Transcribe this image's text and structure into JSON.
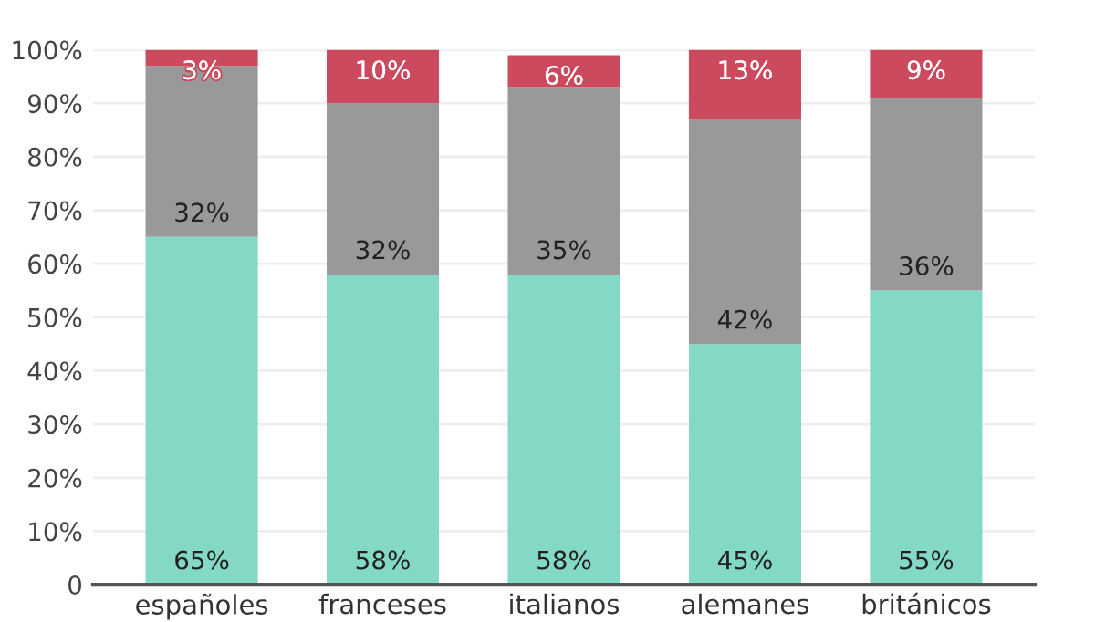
{
  "chart_data": {
    "type": "bar",
    "stacked": true,
    "categories": [
      "españoles",
      "franceses",
      "italianos",
      "alemanes",
      "británicos"
    ],
    "series": [
      {
        "color": "#84d9c6",
        "values": [
          65,
          58,
          58,
          45,
          55
        ],
        "value_labels": [
          "65%",
          "58%",
          "58%",
          "45%",
          "55%"
        ]
      },
      {
        "color": "#999999",
        "values": [
          32,
          32,
          35,
          42,
          36
        ],
        "value_labels": [
          "32%",
          "32%",
          "35%",
          "42%",
          "36%"
        ]
      },
      {
        "color": "#cc4a5e",
        "values": [
          3,
          10,
          6,
          13,
          9
        ],
        "value_labels": [
          "3%",
          "10%",
          "6%",
          "13%",
          "9%"
        ]
      }
    ],
    "ylim": [
      0,
      100
    ],
    "yticks": [
      {
        "value": 0,
        "label": "0"
      },
      {
        "value": 10,
        "label": "10%"
      },
      {
        "value": 20,
        "label": "20%"
      },
      {
        "value": 30,
        "label": "30%"
      },
      {
        "value": 40,
        "label": "40%"
      },
      {
        "value": 50,
        "label": "50%"
      },
      {
        "value": 60,
        "label": "60%"
      },
      {
        "value": 70,
        "label": "70%"
      },
      {
        "value": 80,
        "label": "80%"
      },
      {
        "value": 90,
        "label": "90%"
      },
      {
        "value": 100,
        "label": "100%"
      }
    ],
    "grid": "y",
    "legend": false
  }
}
